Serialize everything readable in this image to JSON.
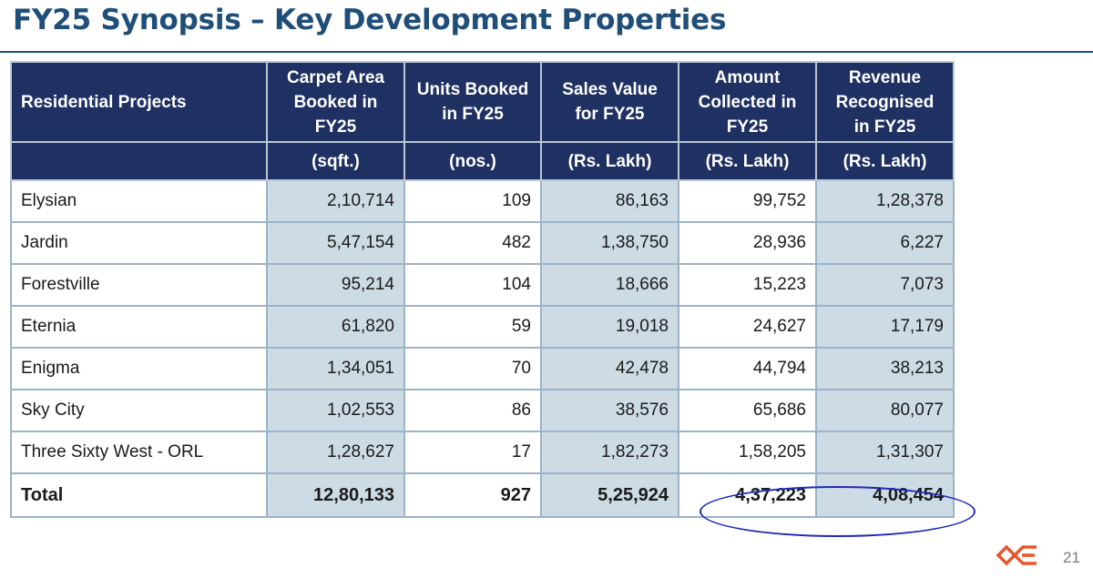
{
  "title": "FY25 Synopsis – Key Development Properties",
  "table": {
    "headers": [
      "Residential Projects",
      "Carpet Area Booked in FY25",
      "Units Booked in FY25",
      "Sales Value for FY25",
      "Amount Collected in FY25",
      "Revenue Recognised in FY25"
    ],
    "units": [
      "",
      "(sqft.)",
      "(nos.)",
      "(Rs. Lakh)",
      "(Rs. Lakh)",
      "(Rs. Lakh)"
    ],
    "rows": [
      [
        "Elysian",
        "2,10,714",
        "109",
        "86,163",
        "99,752",
        "1,28,378"
      ],
      [
        "Jardin",
        "5,47,154",
        "482",
        "1,38,750",
        "28,936",
        "6,227"
      ],
      [
        "Forestville",
        "95,214",
        "104",
        "18,666",
        "15,223",
        "7,073"
      ],
      [
        "Eternia",
        "61,820",
        "59",
        "19,018",
        "24,627",
        "17,179"
      ],
      [
        "Enigma",
        "1,34,051",
        "70",
        "42,478",
        "44,794",
        "38,213"
      ],
      [
        "Sky City",
        "1,02,553",
        "86",
        "38,576",
        "65,686",
        "80,077"
      ],
      [
        "Three Sixty West - ORL",
        "1,28,627",
        "17",
        "1,82,273",
        "1,58,205",
        "1,31,307"
      ]
    ],
    "total": [
      "Total",
      "12,80,133",
      "927",
      "5,25,924",
      "4,37,223",
      "4,08,454"
    ]
  },
  "page_number": "21",
  "colors": {
    "title": "#1f4e79",
    "header_bg": "#1f3062",
    "shaded_cell": "#cddbe5",
    "highlight_oval": "#1e2bb5",
    "logo": "#e8562a"
  },
  "icons": {
    "logo": "company-logo",
    "highlight": "highlight-oval"
  }
}
